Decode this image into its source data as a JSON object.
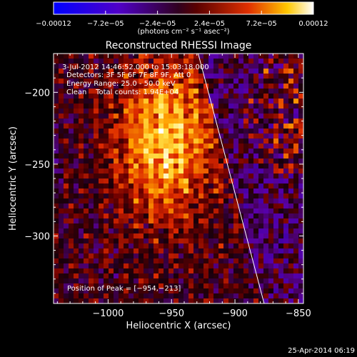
{
  "chart_data": {
    "type": "heatmap",
    "title": "Reconstructed RHESSI Image",
    "xlabel": "Heliocentric X (arcsec)",
    "ylabel": "Heliocentric Y (arcsec)",
    "xlim": [
      -1043,
      -846
    ],
    "ylim": [
      -347,
      -173
    ],
    "x_ticks": [
      {
        "value": -1000,
        "label": "−1000"
      },
      {
        "value": -950,
        "label": "−950"
      },
      {
        "value": -900,
        "label": "−900"
      },
      {
        "value": -850,
        "label": "−850"
      }
    ],
    "y_ticks": [
      {
        "value": -200,
        "label": "−200"
      },
      {
        "value": -250,
        "label": "−250"
      },
      {
        "value": -300,
        "label": "−300"
      }
    ],
    "colorbar": {
      "range": [
        -0.00012,
        0.00012
      ],
      "ticks": [
        {
          "value": -0.00012,
          "label": "−0.00012"
        },
        {
          "value": -7.2e-05,
          "label": "−7.2e−05"
        },
        {
          "value": -2.4e-05,
          "label": "−2.4e−05"
        },
        {
          "value": 2.4e-05,
          "label": "2.4e−05"
        },
        {
          "value": 7.2e-05,
          "label": "7.2e−05"
        },
        {
          "value": 0.00012,
          "label": "0.00012"
        }
      ],
      "unit_label": "(photons cm⁻² s⁻¹ asec⁻²)"
    },
    "annotations": [
      "3-Jul-2012 14:46:52.000 to 15:03:18.000",
      "Detectors: 3F 5F 6F 7F 8F 9F, Att 0",
      "Energy Range: 25.0 - 50.0 keV",
      "Clean    Total counts: 1.94E+04"
    ],
    "peak_label": "Position of Peak = [−954,−213]",
    "peak": {
      "x": -954,
      "y": -213
    },
    "limb_line": [
      {
        "x": -929,
        "y": -173
      },
      {
        "x": -877,
        "y": -347
      }
    ],
    "colors": {
      "background": "#000000",
      "text": "#ffffff",
      "limb": "#ffffff"
    }
  },
  "footer": {
    "timestamp": "25-Apr-2014 06:19"
  }
}
